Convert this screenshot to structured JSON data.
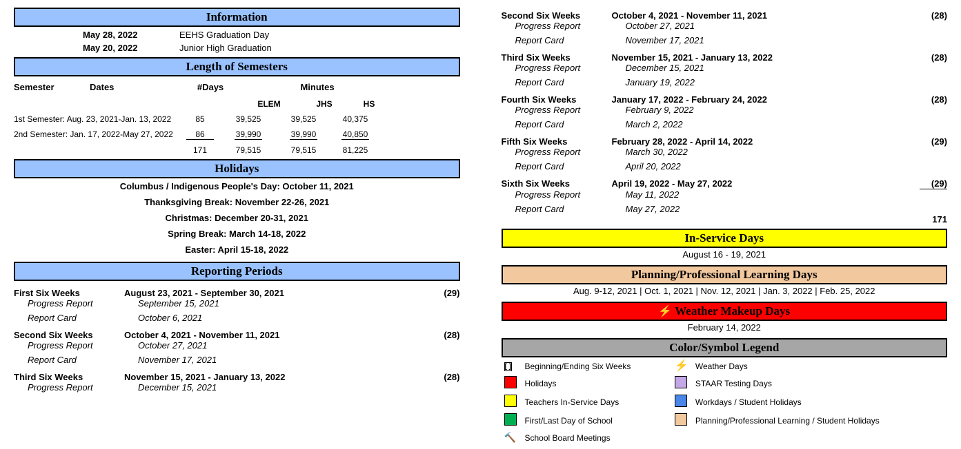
{
  "colors": {
    "header_blue": "#99c2ff",
    "header_yellow": "#ffff00",
    "header_tan": "#f2c89f",
    "header_red": "#ff0000",
    "header_gray": "#a6a6a6",
    "border": "#000000",
    "text": "#000000"
  },
  "information": {
    "title": "Information",
    "rows": [
      {
        "date": "May 28, 2022",
        "event": "EEHS Graduation Day"
      },
      {
        "date": "May 20, 2022",
        "event": "Junior High Graduation"
      }
    ]
  },
  "length_of_semesters": {
    "title": "Length of Semesters",
    "col_labels": {
      "semester": "Semester",
      "dates": "Dates",
      "days": "#Days",
      "minutes": "Minutes"
    },
    "sub_labels": {
      "elem": "ELEM",
      "jhs": "JHS",
      "hs": "HS"
    },
    "rows": [
      {
        "name": "1st Semester: Aug. 23, 2021-Jan. 13, 2022",
        "days": "85",
        "elem": "39,525",
        "jhs": "39,525",
        "hs": "40,375"
      },
      {
        "name": "2nd Semester: Jan. 17, 2022-May 27, 2022",
        "days": "86",
        "elem": "39,990",
        "jhs": "39,990",
        "hs": "40,850"
      }
    ],
    "totals": {
      "days": "171",
      "elem": "79,515",
      "jhs": "79,515",
      "hs": "81,225"
    }
  },
  "holidays": {
    "title": "Holidays",
    "lines": [
      "Columbus / Indigenous People's Day: October 11, 2021",
      "Thanksgiving Break: November 22-26, 2021",
      "Christmas: December 20-31, 2021",
      "Spring Break: March 14-18, 2022",
      "Easter: April 15-18, 2022"
    ]
  },
  "reporting_periods": {
    "title": "Reporting Periods",
    "labels": {
      "progress": "Progress Report",
      "report": "Report Card"
    },
    "periods": [
      {
        "name": "First Six Weeks",
        "range": "August 23, 2021 - September 30, 2021",
        "days": "(29)",
        "progress": "September 15, 2021",
        "report": "October 6, 2021"
      },
      {
        "name": "Second Six Weeks",
        "range": "October 4, 2021 - November 11, 2021",
        "days": "(28)",
        "progress": "October 27, 2021",
        "report": "November 17, 2021"
      },
      {
        "name": "Third Six Weeks",
        "range": "November 15, 2021 - January 13, 2022",
        "days": "(28)",
        "progress": "December 15, 2021",
        "report": "January 19, 2022"
      },
      {
        "name": "Fourth Six Weeks",
        "range": "January 17, 2022 - February 24, 2022",
        "days": "(28)",
        "progress": "February 9, 2022",
        "report": "March 2, 2022"
      },
      {
        "name": "Fifth Six Weeks",
        "range": "February 28, 2022 - April 14, 2022",
        "days": "(29)",
        "progress": "March 30, 2022",
        "report": "April 20, 2022"
      },
      {
        "name": "Sixth Six Weeks",
        "range": "April 19, 2022 - May 27, 2022",
        "days": "(29)",
        "progress": "May 11, 2022",
        "report": "May 27, 2022"
      }
    ],
    "total": "171",
    "left_col_periods": [
      0,
      1,
      2
    ],
    "left_col_partial": 2,
    "right_col_periods": [
      1,
      2,
      3,
      4,
      5
    ]
  },
  "in_service": {
    "title": "In-Service Days",
    "text": "August 16 - 19, 2021"
  },
  "planning": {
    "title": "Planning/Professional Learning Days",
    "text": "Aug. 9-12, 2021 | Oct. 1, 2021 | Nov. 12, 2021 | Jan. 3, 2022 | Feb. 25, 2022"
  },
  "weather": {
    "title": "Weather Makeup Days",
    "text": "February 14, 2022",
    "icon": "⚡"
  },
  "legend": {
    "title": "Color/Symbol Legend",
    "left": [
      {
        "symbol_type": "bracket",
        "text": "Beginning/Ending Six Weeks"
      },
      {
        "symbol_type": "swatch",
        "class": "sw-holiday",
        "text": "Holidays"
      },
      {
        "symbol_type": "swatch",
        "class": "sw-yellow",
        "text": "Teachers In-Service Days"
      },
      {
        "symbol_type": "swatch",
        "class": "sw-green",
        "text": "First/Last Day of School"
      },
      {
        "symbol_type": "gavel",
        "text": "School Board Meetings"
      }
    ],
    "right": [
      {
        "symbol_type": "bolt",
        "text": "Weather Days"
      },
      {
        "symbol_type": "swatch",
        "class": "sw-purple",
        "text": "STAAR Testing Days"
      },
      {
        "symbol_type": "swatch",
        "class": "sw-blue",
        "text": "Workdays / Student Holidays"
      },
      {
        "symbol_type": "swatch",
        "class": "sw-tan",
        "text": "Planning/Professional Learning / Student Holidays"
      }
    ]
  }
}
